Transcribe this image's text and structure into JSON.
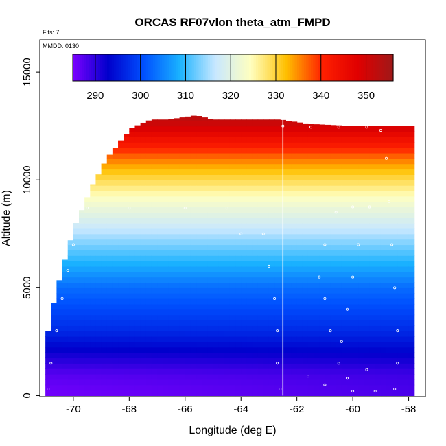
{
  "chart_data": {
    "type": "heatmap",
    "title": "ORCAS RF07vlon theta_atm_FMPD",
    "corner_notes": [
      "Flts: 7",
      "MMDD: 0130"
    ],
    "xlabel": "Longitude (deg E)",
    "ylabel": "Altitude (m)",
    "xlim": [
      -71.2,
      -57.4
    ],
    "ylim": [
      -50,
      16500
    ],
    "x_ticks": [
      -70,
      -68,
      -66,
      -64,
      -62,
      -60,
      -58
    ],
    "y_ticks": [
      0,
      5000,
      10000,
      15000
    ],
    "x_tick_labels": [
      "-70",
      "-68",
      "-66",
      "-64",
      "-62",
      "-60",
      "-58"
    ],
    "y_tick_labels": [
      "0",
      "5000",
      "10000",
      "15000"
    ],
    "colorbar": {
      "vmin": 285,
      "vmax": 356,
      "ticks": [
        290,
        300,
        310,
        320,
        330,
        340,
        350
      ],
      "tick_labels": [
        "290",
        "300",
        "310",
        "320",
        "330",
        "340",
        "350"
      ],
      "colors": [
        "#7a00ff",
        "#0000cc",
        "#0050ff",
        "#1ab2ff",
        "#c8e8ff",
        "#ffffc0",
        "#ffc000",
        "#ff2000",
        "#e00000",
        "#a01818"
      ]
    },
    "data_extent": {
      "lon_min": -71.0,
      "lon_max": -57.8,
      "top_altitude_profile": [
        [
          -71.0,
          2200
        ],
        [
          -70.85,
          3400
        ],
        [
          -70.6,
          4900
        ],
        [
          -70.4,
          5800
        ],
        [
          -70.2,
          6800
        ],
        [
          -70.0,
          7600
        ],
        [
          -69.8,
          8400
        ],
        [
          -69.6,
          8800
        ],
        [
          -69.4,
          9600
        ],
        [
          -69.2,
          10000
        ],
        [
          -69.0,
          10500
        ],
        [
          -68.8,
          11000
        ],
        [
          -68.5,
          11500
        ],
        [
          -68.2,
          12000
        ],
        [
          -67.9,
          12400
        ],
        [
          -67.6,
          12600
        ],
        [
          -67.2,
          12800
        ],
        [
          -66.6,
          12800
        ],
        [
          -65.6,
          13000
        ],
        [
          -65.0,
          12800
        ],
        [
          -64.0,
          12800
        ],
        [
          -62.6,
          12800
        ],
        [
          -61.6,
          12600
        ],
        [
          -60.0,
          12500
        ],
        [
          -57.8,
          12500
        ]
      ],
      "potential_temperature_by_altitude": [
        [
          0,
          288
        ],
        [
          1000,
          289
        ],
        [
          2000,
          293
        ],
        [
          3000,
          297
        ],
        [
          4000,
          300
        ],
        [
          5000,
          303
        ],
        [
          6000,
          308
        ],
        [
          7000,
          313
        ],
        [
          8000,
          318
        ],
        [
          9000,
          323
        ],
        [
          10000,
          329
        ],
        [
          11000,
          336
        ],
        [
          12000,
          345
        ],
        [
          12500,
          350
        ],
        [
          13000,
          353
        ]
      ]
    },
    "flight_track": {
      "marker": "open-circle",
      "color": "#ffffff",
      "points": [
        [
          -70.9,
          300
        ],
        [
          -70.8,
          1500
        ],
        [
          -70.6,
          3000
        ],
        [
          -70.4,
          4500
        ],
        [
          -70.2,
          5800
        ],
        [
          -70.0,
          7000
        ],
        [
          -69.8,
          8000
        ],
        [
          -69.5,
          8700
        ],
        [
          -68.0,
          8700
        ],
        [
          -66.0,
          8700
        ],
        [
          -64.5,
          8700
        ],
        [
          -64.0,
          7500
        ],
        [
          -63.2,
          7500
        ],
        [
          -63.0,
          6000
        ],
        [
          -62.8,
          4500
        ],
        [
          -62.7,
          3000
        ],
        [
          -62.7,
          1500
        ],
        [
          -62.6,
          300
        ],
        [
          -62.5,
          12500
        ],
        [
          -61.5,
          12450
        ],
        [
          -60.5,
          12450
        ],
        [
          -59.5,
          12450
        ],
        [
          -59.0,
          12300
        ],
        [
          -58.8,
          11000
        ],
        [
          -58.7,
          9000
        ],
        [
          -58.6,
          7000
        ],
        [
          -58.5,
          5000
        ],
        [
          -58.4,
          3000
        ],
        [
          -58.4,
          1500
        ],
        [
          -58.5,
          300
        ],
        [
          -59.2,
          200
        ],
        [
          -60.0,
          200
        ],
        [
          -60.5,
          1500
        ],
        [
          -60.8,
          3000
        ],
        [
          -61.0,
          4500
        ],
        [
          -61.2,
          5500
        ],
        [
          -61.0,
          7000
        ],
        [
          -60.6,
          8500
        ],
        [
          -60.0,
          8750
        ],
        [
          -59.4,
          8750
        ],
        [
          -59.8,
          7000
        ],
        [
          -60.0,
          5500
        ],
        [
          -60.2,
          4000
        ],
        [
          -60.4,
          2500
        ],
        [
          -61.6,
          900
        ],
        [
          -61.0,
          500
        ],
        [
          -60.2,
          800
        ],
        [
          -59.5,
          1200
        ]
      ]
    },
    "vertical_line": {
      "lon": -62.5
    }
  }
}
